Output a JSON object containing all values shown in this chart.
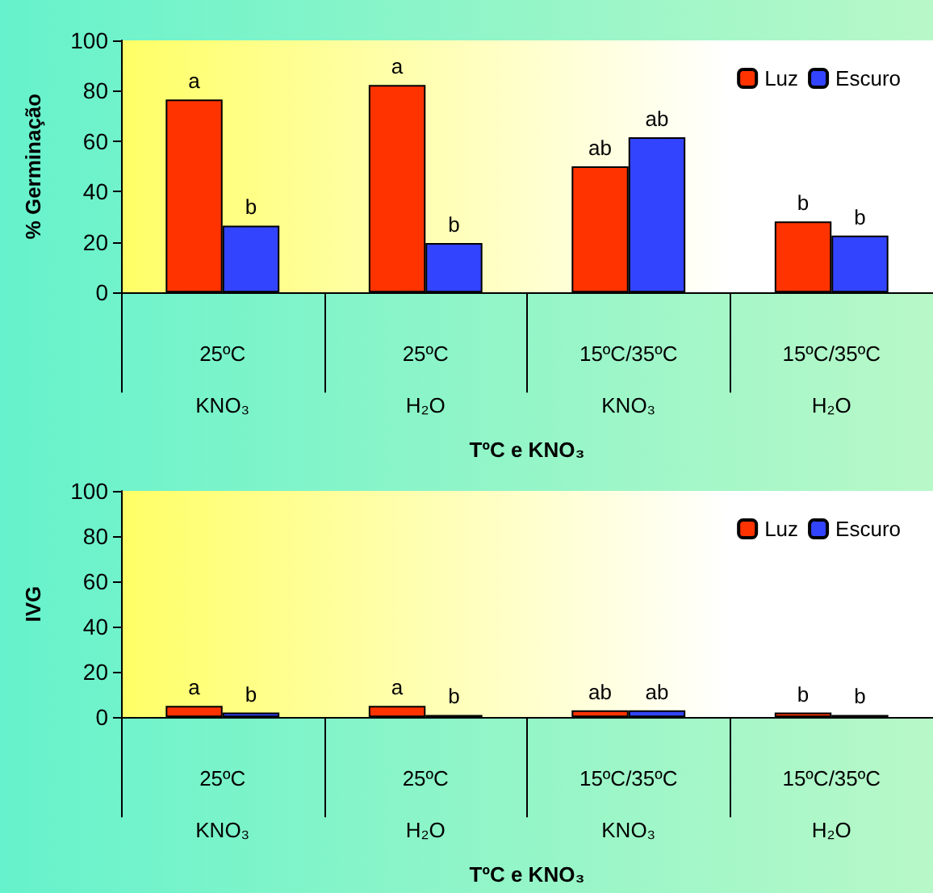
{
  "chart_data": [
    {
      "type": "bar",
      "ylabel": "% Germinação",
      "xlabel": "TºC e KNO₃",
      "categories": [
        "25ºC\nKNO₃",
        "25ºC\nH₂O",
        "15ºC/35ºC\nKNO₃",
        "15ºC/35ºC\nH₂O"
      ],
      "series": [
        {
          "name": "Luz",
          "color": "#ff3300",
          "values": [
            76.5,
            82.3,
            50,
            28.2
          ],
          "value_labels": [
            "a",
            "a",
            "ab",
            "b"
          ]
        },
        {
          "name": "Escuro",
          "color": "#3344ff",
          "values": [
            26.5,
            19.6,
            61.6,
            22.6
          ],
          "value_labels": [
            "b",
            "b",
            "ab",
            "b"
          ]
        }
      ],
      "ylim": [
        0,
        100
      ],
      "yticks": [
        0,
        20,
        40,
        60,
        80,
        100
      ],
      "grid": false,
      "legend": "top right"
    },
    {
      "type": "bar",
      "ylabel": "IVG",
      "xlabel": "TºC e KNO₃",
      "categories": [
        "25ºC\nKNO₃",
        "25ºC\nH₂O",
        "15ºC/35ºC\nKNO₃",
        "15ºC/35ºC\nH₂O"
      ],
      "series": [
        {
          "name": "Luz",
          "color": "#ff3300",
          "values": [
            5,
            5,
            3,
            2
          ],
          "value_labels": [
            "a",
            "a",
            "ab",
            "b"
          ]
        },
        {
          "name": "Escuro",
          "color": "#3344ff",
          "values": [
            2,
            1,
            3,
            1
          ],
          "value_labels": [
            "b",
            "b",
            "ab",
            "b"
          ]
        }
      ],
      "ylim": [
        0,
        100
      ],
      "yticks": [
        0,
        20,
        40,
        60,
        80,
        100
      ],
      "grid": false,
      "legend": "top right"
    }
  ]
}
